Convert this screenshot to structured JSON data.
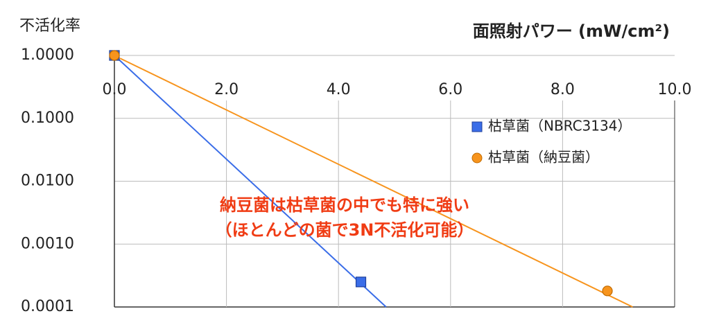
{
  "chart_data": {
    "type": "scatter",
    "title": "不活化率",
    "x_label": "面照射パワー (mW/cm²)",
    "annotations": [
      "納豆菌は枯草菌の中でも特に強い",
      "（ほとんどの菌で3N不活化可能）"
    ],
    "annotation_color": "#f03c14",
    "xlim": [
      0,
      10
    ],
    "xticks": [
      {
        "value": 0,
        "label": "0.0"
      },
      {
        "value": 2,
        "label": "2.0"
      },
      {
        "value": 4,
        "label": "4.0"
      },
      {
        "value": 6,
        "label": "6.0"
      },
      {
        "value": 8,
        "label": "8.0"
      },
      {
        "value": 10,
        "label": "10.0"
      }
    ],
    "ylim": [
      0.0001,
      1
    ],
    "yscale": "log",
    "yticks": [
      {
        "value": 1,
        "label": "1.0000"
      },
      {
        "value": 0.1,
        "label": "0.1000"
      },
      {
        "value": 0.01,
        "label": "0.0100"
      },
      {
        "value": 0.001,
        "label": "0.0010"
      },
      {
        "value": 0.0001,
        "label": "0.0001"
      }
    ],
    "grid": true,
    "legend": "right",
    "series": [
      {
        "name": "枯草菌（NBRC3134）",
        "color": "#3a6de8",
        "marker": "square",
        "x": [
          0,
          4.4
        ],
        "values": [
          1,
          0.00025
        ],
        "trendline": {
          "x": [
            0,
            4.85
          ],
          "values": [
            1,
            0.0001
          ]
        }
      },
      {
        "name": "枯草菌（納豆菌）",
        "color": "#f7941d",
        "marker": "circle",
        "x": [
          0,
          8.8
        ],
        "values": [
          1,
          0.00018
        ],
        "trendline": {
          "x": [
            0.1,
            9.25
          ],
          "values": [
            0.9,
            0.0001
          ]
        }
      }
    ]
  }
}
